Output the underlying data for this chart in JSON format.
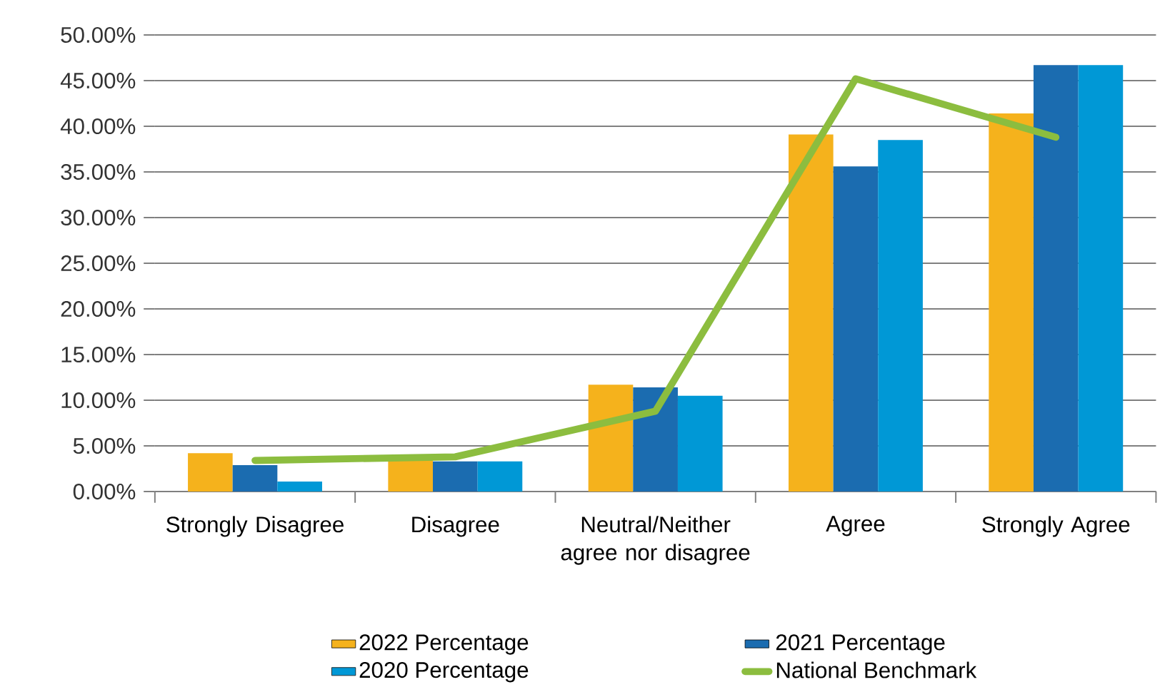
{
  "chart_data": {
    "type": "bar",
    "categories": [
      "Strongly Disagree",
      "Disagree",
      "Neutral/Neither agree nor disagree",
      "Agree",
      "Strongly Agree"
    ],
    "series": [
      {
        "name": "2022 Percentage",
        "color": "#f5b21c",
        "values": [
          4.2,
          3.6,
          11.7,
          39.1,
          41.4
        ]
      },
      {
        "name": "2021 Percentage",
        "color": "#1b6cb0",
        "values": [
          2.9,
          3.3,
          11.4,
          35.6,
          46.7
        ]
      },
      {
        "name": "2020 Percentage",
        "color": "#0098d6",
        "values": [
          1.1,
          3.3,
          10.5,
          38.5,
          46.7
        ]
      },
      {
        "name": "National Benchmark",
        "type": "line",
        "color": "#8cbd3f",
        "values": [
          3.4,
          3.8,
          8.8,
          45.2,
          38.8
        ]
      }
    ],
    "ylim": [
      0,
      50
    ],
    "yticks": [
      {
        "value": 0,
        "label": "0.00%"
      },
      {
        "value": 5,
        "label": "5.00%"
      },
      {
        "value": 10,
        "label": "10.00%"
      },
      {
        "value": 15,
        "label": "15.00%"
      },
      {
        "value": 20,
        "label": "20.00%"
      },
      {
        "value": 25,
        "label": "25.00%"
      },
      {
        "value": 30,
        "label": "30.00%"
      },
      {
        "value": 35,
        "label": "35.00%"
      },
      {
        "value": 40,
        "label": "40.00%"
      },
      {
        "value": 45,
        "label": "45.00%"
      },
      {
        "value": 50,
        "label": "50.00%"
      }
    ],
    "grid": "y",
    "legend": "bottom",
    "marker": "none"
  }
}
